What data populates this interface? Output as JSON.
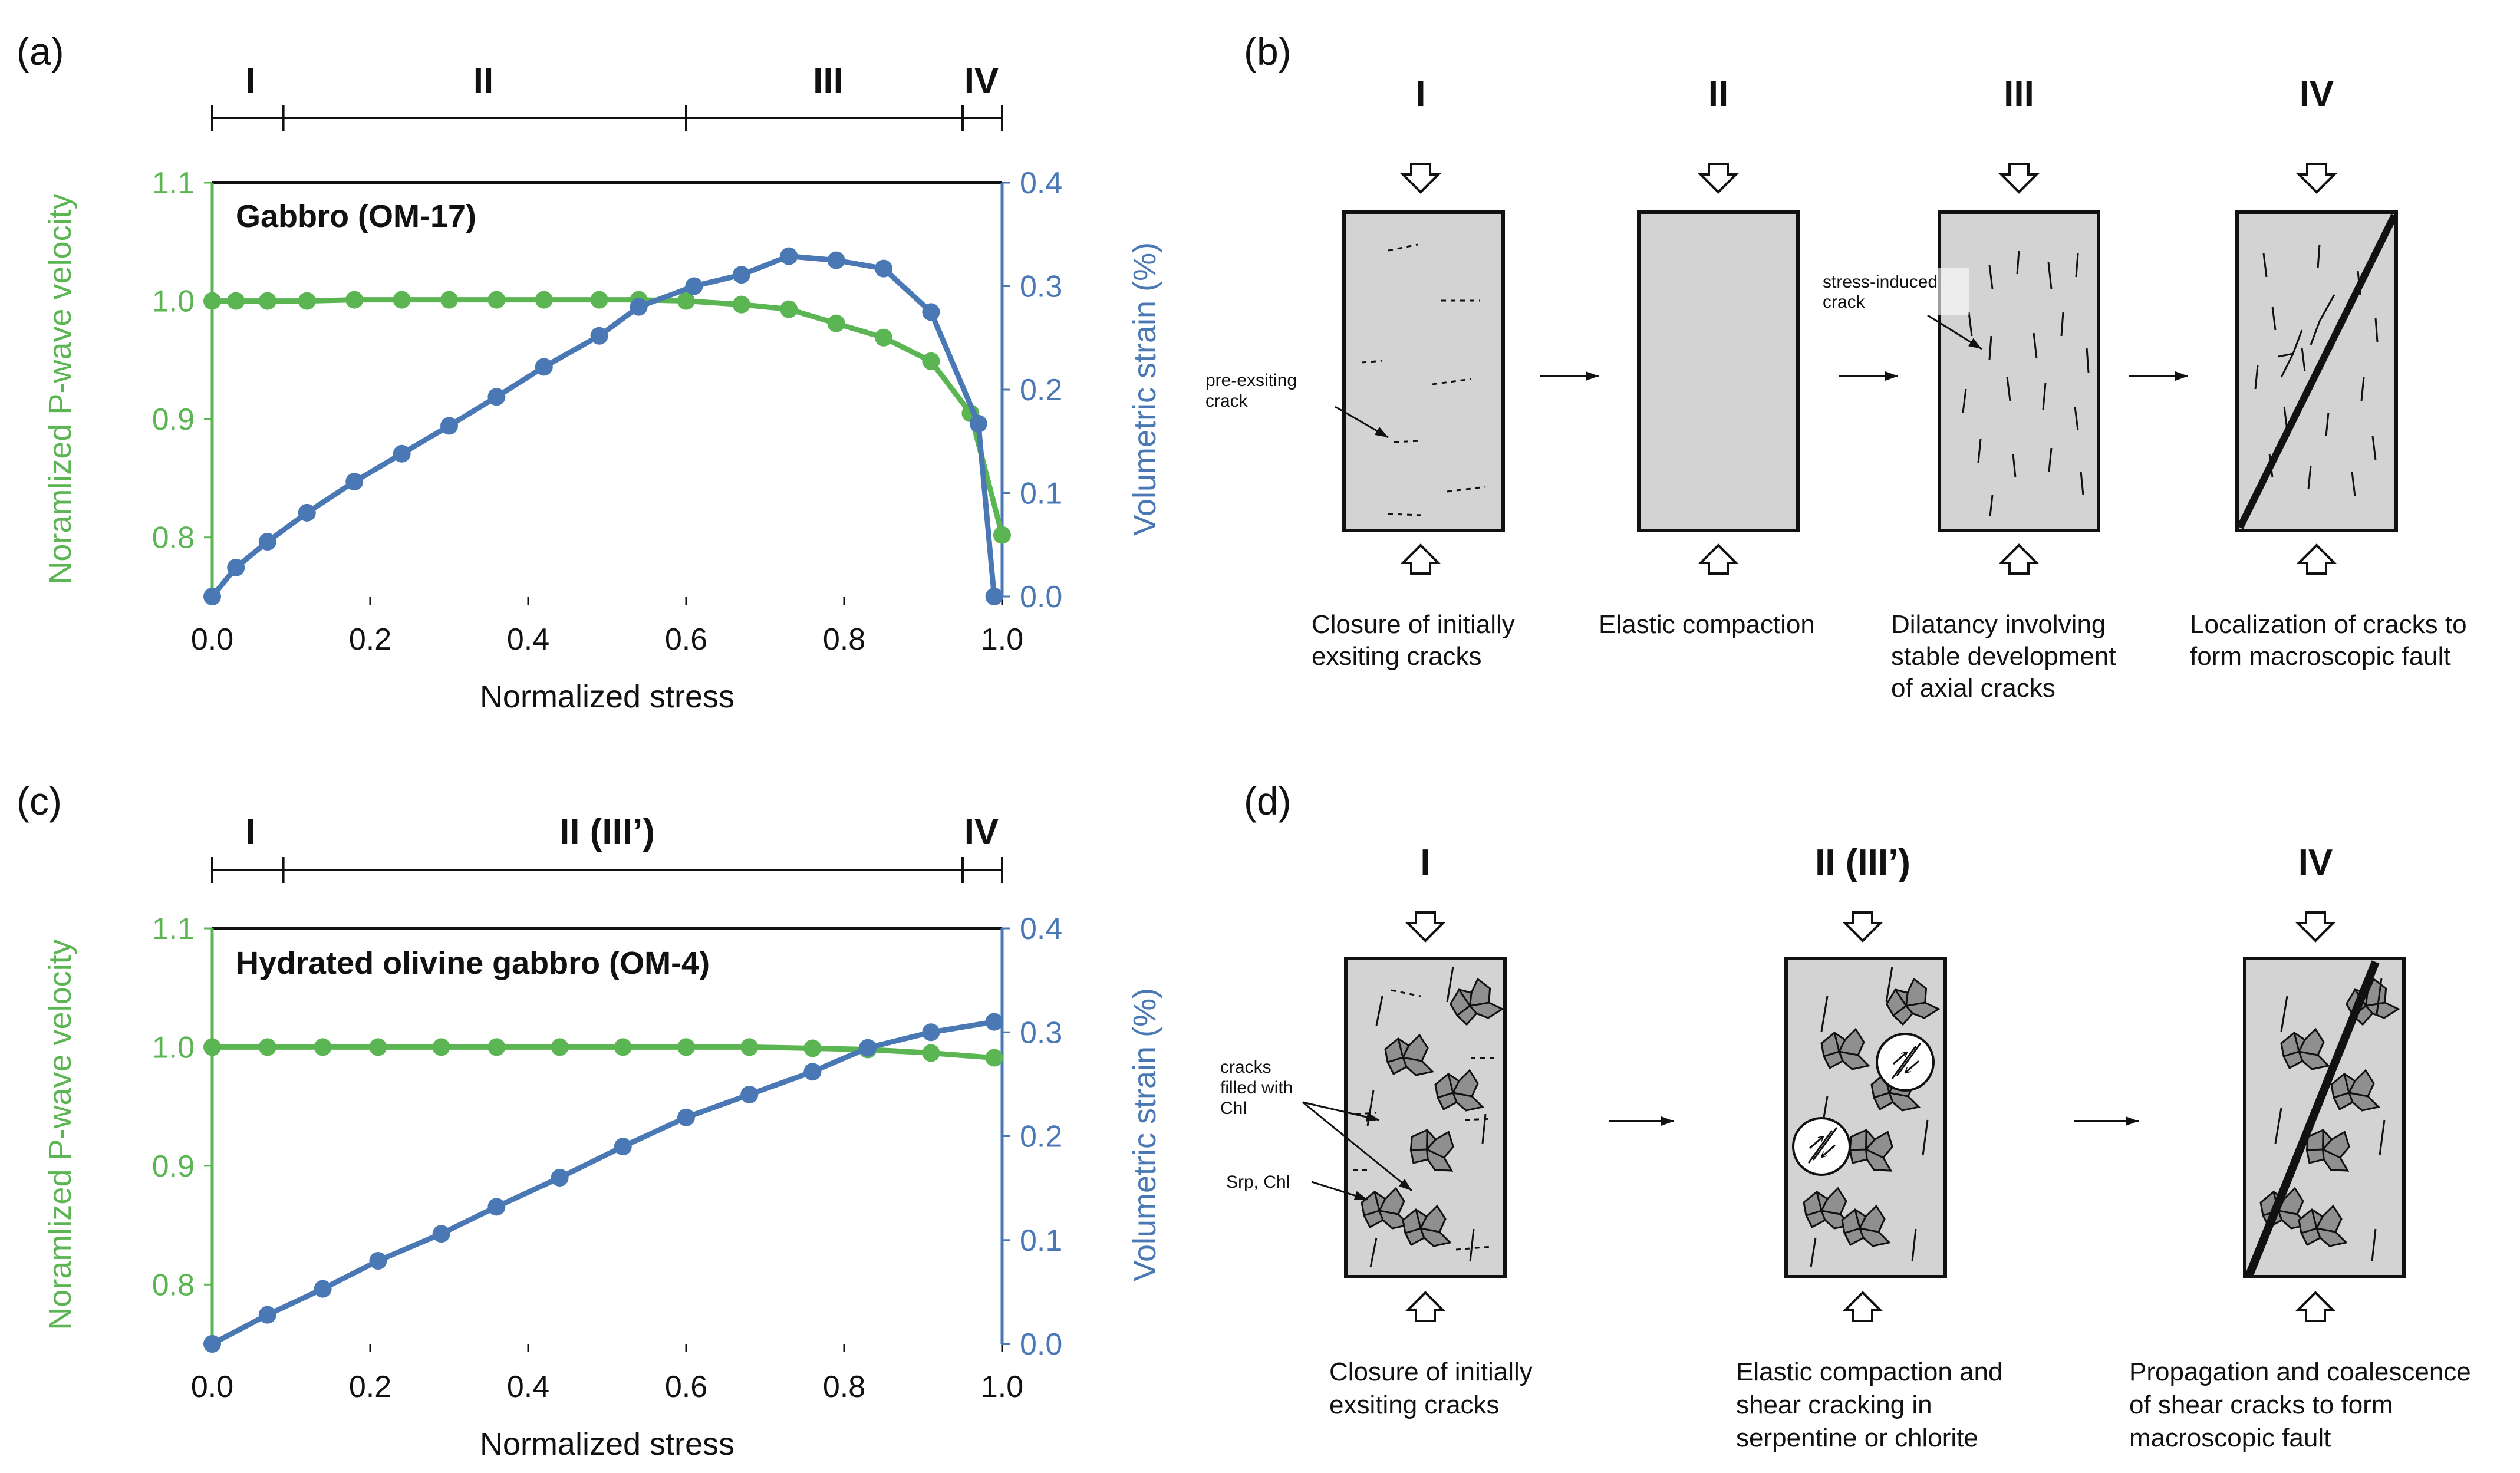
{
  "panels": {
    "a": {
      "label": "(a)",
      "title": "Gabbro (OM-17)",
      "stages": [
        "I",
        "II",
        "III",
        "IV"
      ],
      "stage_bounds": [
        0.0,
        0.09,
        0.6,
        0.95,
        1.0
      ]
    },
    "b": {
      "label": "(b)",
      "stages": [
        "I",
        "II",
        "III",
        "IV"
      ],
      "captions": [
        [
          "Closure of initially",
          "exsiting cracks"
        ],
        [
          "Elastic compaction"
        ],
        [
          "Dilatancy involving",
          "stable development",
          "of axial cracks"
        ],
        [
          "Localization of cracks to",
          "form macroscopic fault"
        ]
      ],
      "annotations": {
        "preexisting": [
          "pre-exsiting",
          "crack"
        ],
        "stress_induced": [
          "stress-induced",
          "crack"
        ]
      }
    },
    "c": {
      "label": "(c)",
      "title": "Hydrated olivine gabbro (OM-4)",
      "stages": [
        "I",
        "II (III’)",
        "IV"
      ],
      "stage_bounds": [
        0.0,
        0.09,
        0.95,
        1.0
      ]
    },
    "d": {
      "label": "(d)",
      "stages": [
        "I",
        "II (III’)",
        "IV"
      ],
      "captions": [
        [
          "Closure of initially",
          "exsiting cracks"
        ],
        [
          "Elastic compaction and",
          "shear cracking in",
          "serpentine or chlorite"
        ],
        [
          "Propagation and coalescence",
          "of shear cracks to form",
          "macroscopic fault"
        ]
      ],
      "annotations": {
        "chl": [
          "cracks",
          "filled with",
          "Chl"
        ],
        "srp": [
          "Srp, Chl"
        ]
      }
    }
  },
  "chart_data": [
    {
      "type": "line",
      "panel": "a",
      "title": "Gabbro (OM-17)",
      "xlabel": "Normalized stress",
      "ylabel": "Noramlized P-wave velocity",
      "y2label": "Volumetric strain (%)",
      "xlim": [
        0.0,
        1.0
      ],
      "ylim": [
        0.75,
        1.1
      ],
      "y2lim": [
        0.0,
        0.4
      ],
      "xticks": [
        "0.0",
        "0.2",
        "0.4",
        "0.6",
        "0.8",
        "1.0"
      ],
      "yticks": [
        "0.8",
        "0.9",
        "1.0",
        "1.1"
      ],
      "y2ticks": [
        "0.0",
        "0.1",
        "0.2",
        "0.3",
        "0.4"
      ],
      "series": [
        {
          "name": "Normalized P-wave velocity",
          "axis": "left",
          "color": "#5ab552",
          "x": [
            0.0,
            0.03,
            0.07,
            0.12,
            0.18,
            0.24,
            0.3,
            0.36,
            0.42,
            0.49,
            0.54,
            0.6,
            0.67,
            0.73,
            0.79,
            0.85,
            0.91,
            0.96,
            1.0
          ],
          "y": [
            1.0,
            1.0,
            1.0,
            1.0,
            1.001,
            1.001,
            1.001,
            1.001,
            1.001,
            1.001,
            1.001,
            1.0,
            0.997,
            0.993,
            0.981,
            0.969,
            0.949,
            0.905,
            0.802
          ]
        },
        {
          "name": "Volumetric strain",
          "axis": "right",
          "color": "#4a78b5",
          "x": [
            0.0,
            0.03,
            0.07,
            0.12,
            0.18,
            0.24,
            0.3,
            0.36,
            0.42,
            0.49,
            0.54,
            0.61,
            0.67,
            0.73,
            0.79,
            0.85,
            0.91,
            0.97,
            0.99
          ],
          "y": [
            0.0,
            0.028,
            0.053,
            0.081,
            0.111,
            0.138,
            0.165,
            0.193,
            0.222,
            0.252,
            0.28,
            0.3,
            0.311,
            0.329,
            0.325,
            0.317,
            0.275,
            0.167,
            0.0
          ]
        }
      ]
    },
    {
      "type": "line",
      "panel": "c",
      "title": "Hydrated olivine gabbro (OM-4)",
      "xlabel": "Normalized stress",
      "ylabel": "Noramlized P-wave velocity",
      "y2label": "Volumetric strain (%)",
      "xlim": [
        0.0,
        1.0
      ],
      "ylim": [
        0.75,
        1.1
      ],
      "y2lim": [
        0.0,
        0.4
      ],
      "xticks": [
        "0.0",
        "0.2",
        "0.4",
        "0.6",
        "0.8",
        "1.0"
      ],
      "yticks": [
        "0.8",
        "0.9",
        "1.0",
        "1.1"
      ],
      "y2ticks": [
        "0.0",
        "0.1",
        "0.2",
        "0.3",
        "0.4"
      ],
      "series": [
        {
          "name": "Normalized P-wave velocity",
          "axis": "left",
          "color": "#5ab552",
          "x": [
            0.0,
            0.07,
            0.14,
            0.21,
            0.29,
            0.36,
            0.44,
            0.52,
            0.6,
            0.68,
            0.76,
            0.83,
            0.91,
            0.99
          ],
          "y": [
            1.0,
            1.0,
            1.0,
            1.0,
            1.0,
            1.0,
            1.0,
            1.0,
            1.0,
            1.0,
            0.999,
            0.998,
            0.995,
            0.991
          ]
        },
        {
          "name": "Volumetric strain",
          "axis": "right",
          "color": "#4a78b5",
          "x": [
            0.0,
            0.07,
            0.14,
            0.21,
            0.29,
            0.36,
            0.44,
            0.52,
            0.6,
            0.68,
            0.76,
            0.83,
            0.91,
            0.99
          ],
          "y": [
            0.0,
            0.028,
            0.053,
            0.08,
            0.106,
            0.132,
            0.16,
            0.19,
            0.218,
            0.24,
            0.262,
            0.285,
            0.3,
            0.31
          ]
        }
      ]
    }
  ]
}
